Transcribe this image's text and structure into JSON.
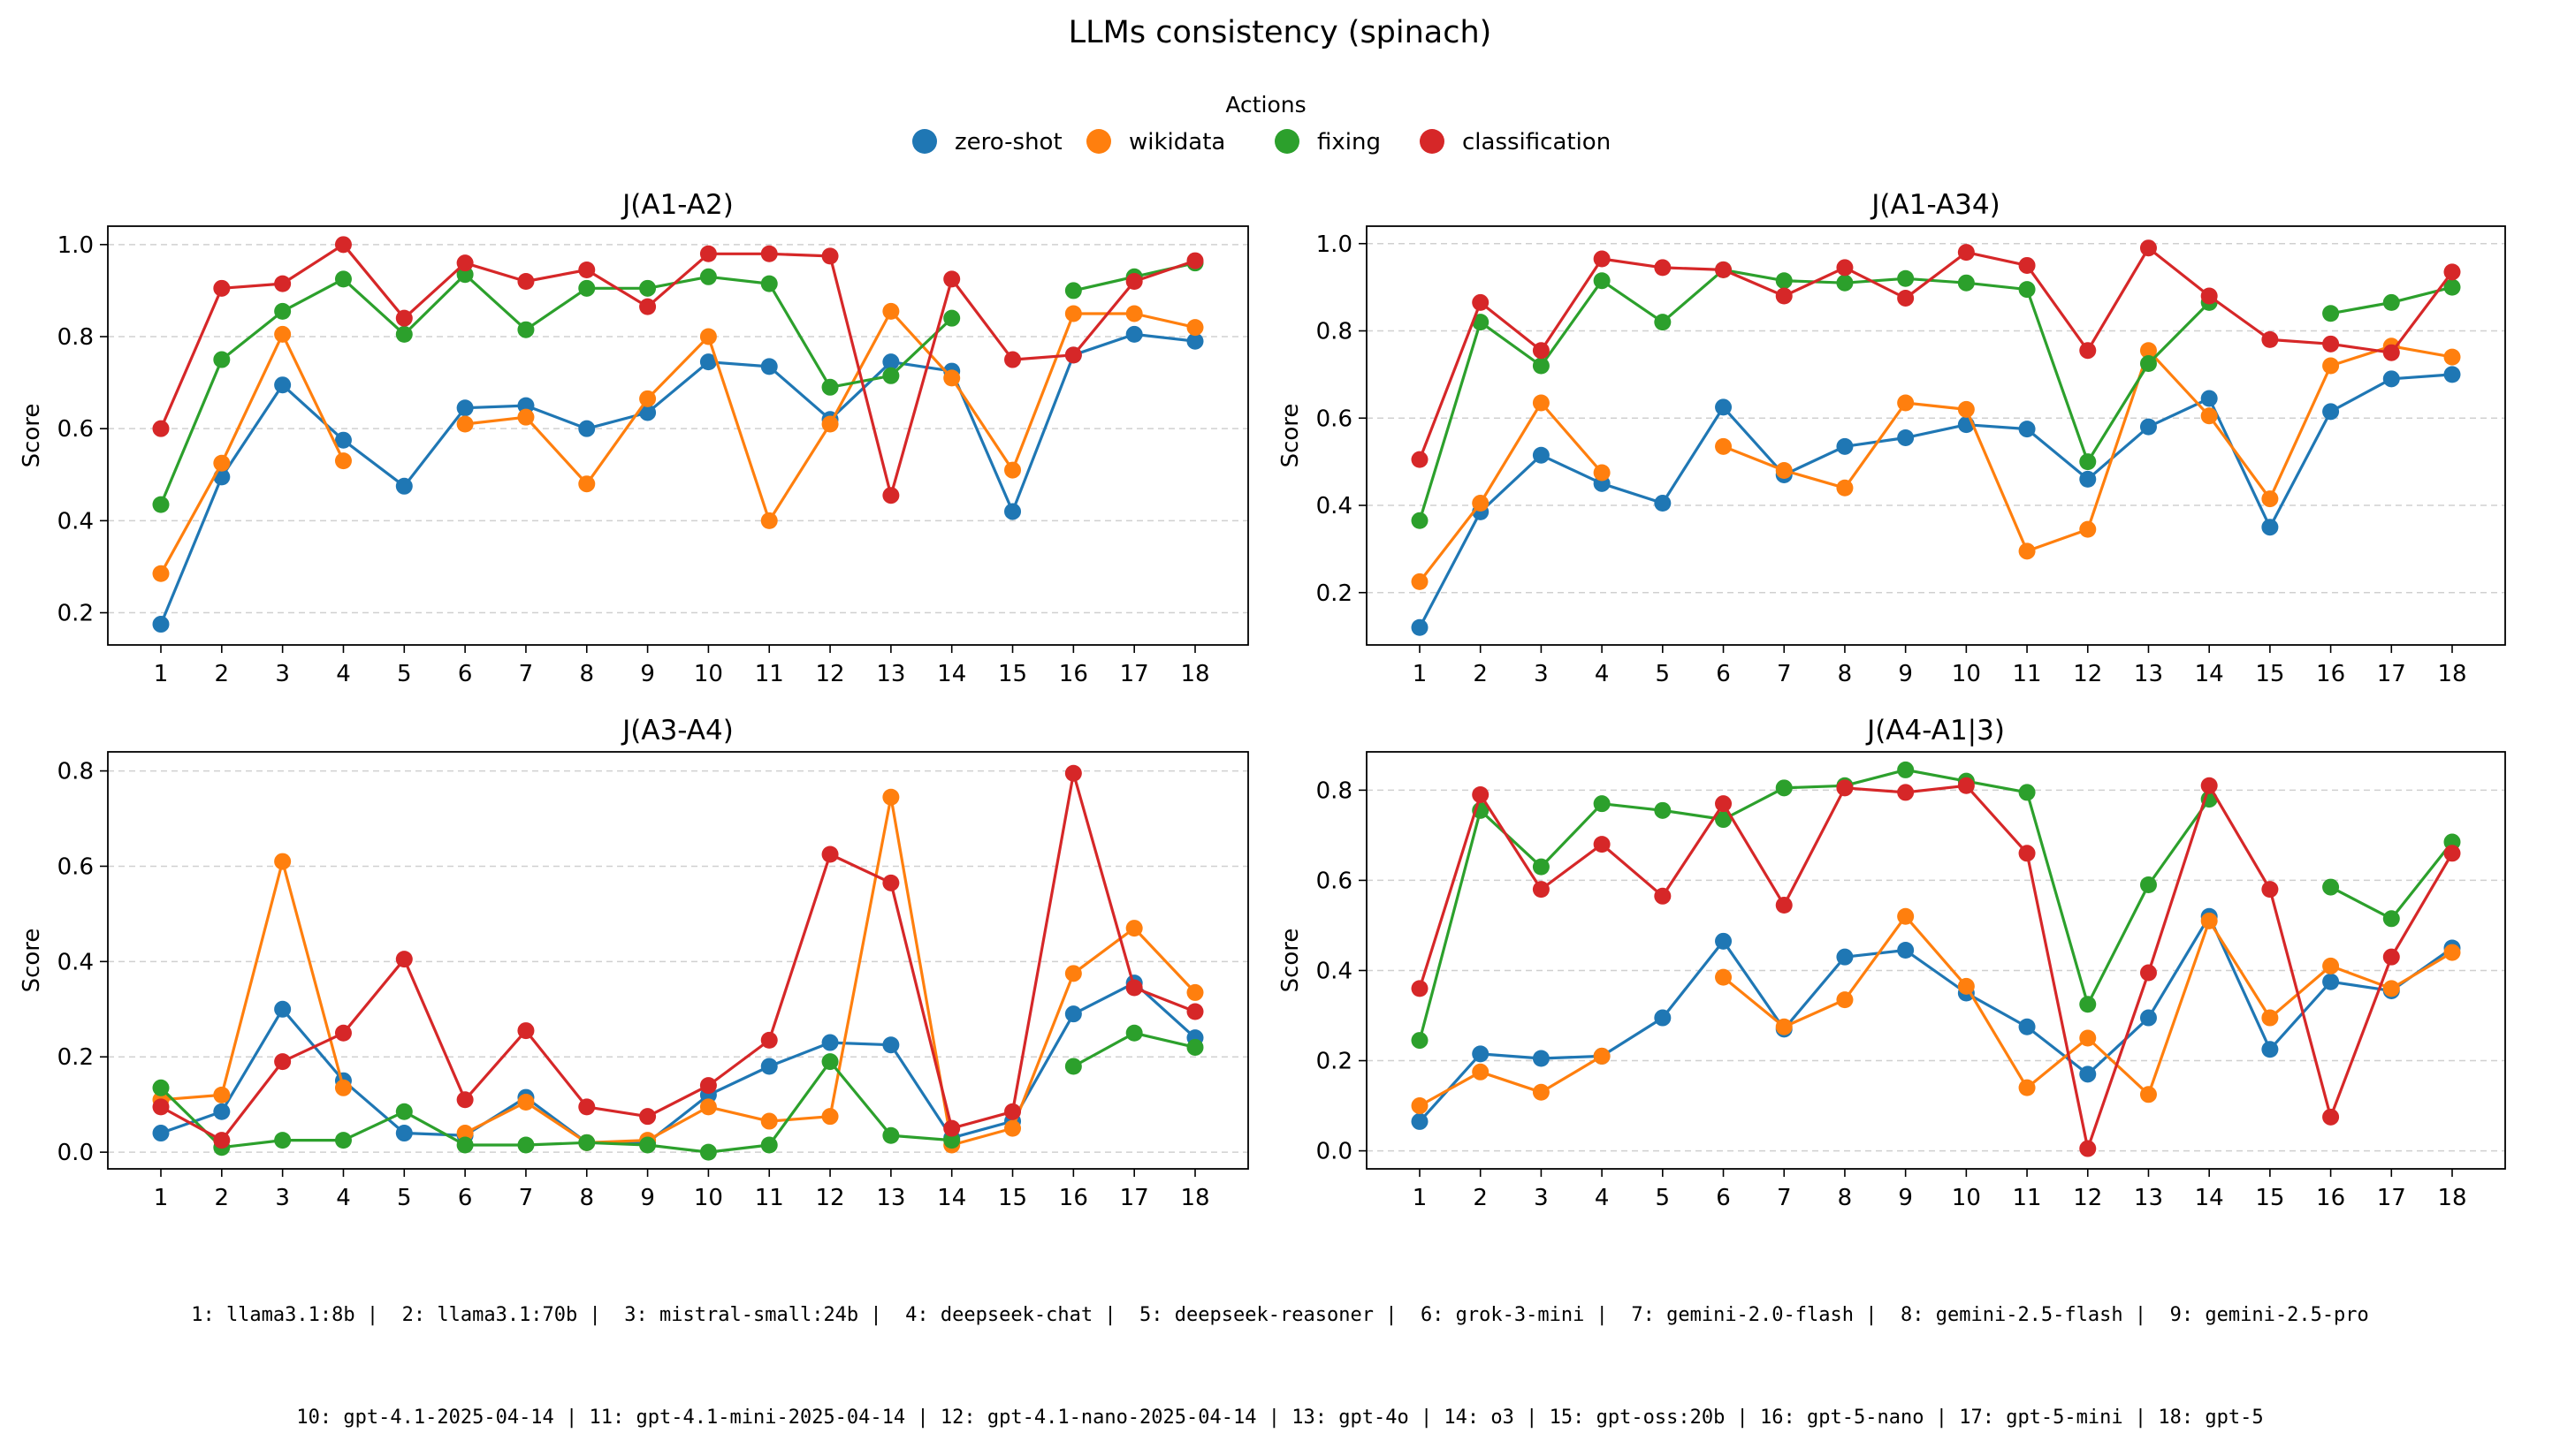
{
  "figure": {
    "title": "LLMs consistency (spinach)",
    "legend_title": "Actions",
    "footer_line1": "1: llama3.1:8b |  2: llama3.1:70b |  3: mistral-small:24b |  4: deepseek-chat |  5: deepseek-reasoner |  6: grok-3-mini |  7: gemini-2.0-flash |  8: gemini-2.5-flash |  9: gemini-2.5-pro",
    "footer_line2": "10: gpt-4.1-2025-04-14 | 11: gpt-4.1-mini-2025-04-14 | 12: gpt-4.1-nano-2025-04-14 | 13: gpt-4o | 14: o3 | 15: gpt-oss:20b | 16: gpt-5-nano | 17: gpt-5-mini | 18: gpt-5"
  },
  "colors": {
    "zero-shot": "#1f77b4",
    "wikidata": "#ff7f0e",
    "fixing": "#2ca02c",
    "classification": "#d62728"
  },
  "chart_data": [
    {
      "type": "line",
      "title": "J(A1-A2)",
      "ylabel": "Score",
      "x": [
        1,
        2,
        3,
        4,
        5,
        6,
        7,
        8,
        9,
        10,
        11,
        12,
        13,
        14,
        15,
        16,
        17,
        18
      ],
      "ylim": [
        0.13,
        1.04
      ],
      "yticks": [
        0.2,
        0.4,
        0.6,
        0.8,
        1.0
      ],
      "grid": "y-dashed",
      "series": [
        {
          "name": "zero-shot",
          "values": [
            0.175,
            0.495,
            0.695,
            0.575,
            0.475,
            0.645,
            0.65,
            0.6,
            0.635,
            0.745,
            0.735,
            0.62,
            0.745,
            0.725,
            0.42,
            0.76,
            0.805,
            0.79
          ]
        },
        {
          "name": "wikidata",
          "values": [
            0.285,
            0.525,
            0.805,
            0.53,
            null,
            0.61,
            0.625,
            0.48,
            0.665,
            0.8,
            0.4,
            0.61,
            0.855,
            0.71,
            0.51,
            0.85,
            0.85,
            0.82
          ]
        },
        {
          "name": "fixing",
          "values": [
            0.435,
            0.75,
            0.855,
            0.925,
            0.805,
            0.935,
            0.815,
            0.905,
            0.905,
            0.93,
            0.915,
            0.69,
            0.715,
            0.84,
            null,
            0.9,
            0.93,
            0.96
          ]
        },
        {
          "name": "classification",
          "values": [
            0.6,
            0.905,
            0.915,
            1.0,
            0.84,
            0.96,
            0.92,
            0.945,
            0.865,
            0.98,
            0.98,
            0.975,
            0.455,
            0.925,
            0.75,
            0.76,
            0.92,
            0.965
          ]
        }
      ]
    },
    {
      "type": "line",
      "title": "J(A1-A34)",
      "ylabel": "Score",
      "x": [
        1,
        2,
        3,
        4,
        5,
        6,
        7,
        8,
        9,
        10,
        11,
        12,
        13,
        14,
        15,
        16,
        17,
        18
      ],
      "ylim": [
        0.08,
        1.04
      ],
      "yticks": [
        0.2,
        0.4,
        0.6,
        0.8,
        1.0
      ],
      "grid": "y-dashed",
      "series": [
        {
          "name": "zero-shot",
          "values": [
            0.12,
            0.385,
            0.515,
            0.45,
            0.405,
            0.625,
            0.47,
            0.535,
            0.555,
            0.585,
            0.575,
            0.46,
            0.58,
            0.645,
            0.35,
            0.615,
            0.69,
            0.7
          ]
        },
        {
          "name": "wikidata",
          "values": [
            0.225,
            0.405,
            0.635,
            0.475,
            null,
            0.535,
            0.48,
            0.44,
            0.635,
            0.62,
            0.295,
            0.345,
            0.755,
            0.605,
            0.415,
            0.72,
            0.765,
            0.74
          ]
        },
        {
          "name": "fixing",
          "values": [
            0.365,
            0.82,
            0.72,
            0.915,
            0.82,
            0.94,
            0.915,
            0.91,
            0.92,
            0.91,
            0.895,
            0.5,
            0.725,
            0.865,
            null,
            0.84,
            0.865,
            0.9
          ]
        },
        {
          "name": "classification",
          "values": [
            0.505,
            0.865,
            0.755,
            0.965,
            0.945,
            0.94,
            0.88,
            0.945,
            0.875,
            0.98,
            0.95,
            0.755,
            0.99,
            0.88,
            0.78,
            0.77,
            0.75,
            0.935
          ]
        }
      ]
    },
    {
      "type": "line",
      "title": "J(A3-A4)",
      "ylabel": "Score",
      "x": [
        1,
        2,
        3,
        4,
        5,
        6,
        7,
        8,
        9,
        10,
        11,
        12,
        13,
        14,
        15,
        16,
        17,
        18
      ],
      "ylim": [
        -0.035,
        0.84
      ],
      "yticks": [
        0.0,
        0.2,
        0.4,
        0.6,
        0.8
      ],
      "grid": "y-dashed",
      "series": [
        {
          "name": "zero-shot",
          "values": [
            0.04,
            0.085,
            0.3,
            0.15,
            0.04,
            0.035,
            0.115,
            0.02,
            0.02,
            0.12,
            0.18,
            0.23,
            0.225,
            0.03,
            0.065,
            0.29,
            0.355,
            0.24
          ]
        },
        {
          "name": "wikidata",
          "values": [
            0.11,
            0.12,
            0.61,
            0.135,
            null,
            0.04,
            0.105,
            0.02,
            0.025,
            0.095,
            0.065,
            0.075,
            0.745,
            0.015,
            0.05,
            0.375,
            0.47,
            0.335
          ]
        },
        {
          "name": "fixing",
          "values": [
            0.135,
            0.01,
            0.025,
            0.025,
            0.085,
            0.015,
            0.015,
            0.02,
            0.015,
            0.0,
            0.015,
            0.19,
            0.035,
            0.025,
            null,
            0.18,
            0.25,
            0.22
          ]
        },
        {
          "name": "classification",
          "values": [
            0.095,
            0.025,
            0.19,
            0.25,
            0.405,
            0.11,
            0.255,
            0.095,
            0.075,
            0.14,
            0.235,
            0.625,
            0.565,
            0.05,
            0.085,
            0.795,
            0.345,
            0.295
          ]
        }
      ]
    },
    {
      "type": "line",
      "title": "J(A4-A1|3)",
      "ylabel": "Score",
      "x": [
        1,
        2,
        3,
        4,
        5,
        6,
        7,
        8,
        9,
        10,
        11,
        12,
        13,
        14,
        15,
        16,
        17,
        18
      ],
      "ylim": [
        -0.04,
        0.885
      ],
      "yticks": [
        0.0,
        0.2,
        0.4,
        0.6,
        0.8
      ],
      "grid": "y-dashed",
      "series": [
        {
          "name": "zero-shot",
          "values": [
            0.065,
            0.215,
            0.205,
            0.21,
            0.295,
            0.465,
            0.27,
            0.43,
            0.445,
            0.35,
            0.275,
            0.17,
            0.295,
            0.52,
            0.225,
            0.375,
            0.355,
            0.45
          ]
        },
        {
          "name": "wikidata",
          "values": [
            0.1,
            0.175,
            0.13,
            0.21,
            null,
            0.385,
            0.275,
            0.335,
            0.52,
            0.365,
            0.14,
            0.25,
            0.125,
            0.51,
            0.295,
            0.41,
            0.36,
            0.44
          ]
        },
        {
          "name": "fixing",
          "values": [
            0.245,
            0.755,
            0.63,
            0.77,
            0.755,
            0.735,
            0.805,
            0.81,
            0.845,
            0.82,
            0.795,
            0.325,
            0.59,
            0.78,
            null,
            0.585,
            0.515,
            0.685
          ]
        },
        {
          "name": "classification",
          "values": [
            0.36,
            0.79,
            0.58,
            0.68,
            0.565,
            0.77,
            0.545,
            0.805,
            0.795,
            0.81,
            0.66,
            0.005,
            0.395,
            0.81,
            0.58,
            0.075,
            0.43,
            0.66
          ]
        }
      ]
    }
  ]
}
